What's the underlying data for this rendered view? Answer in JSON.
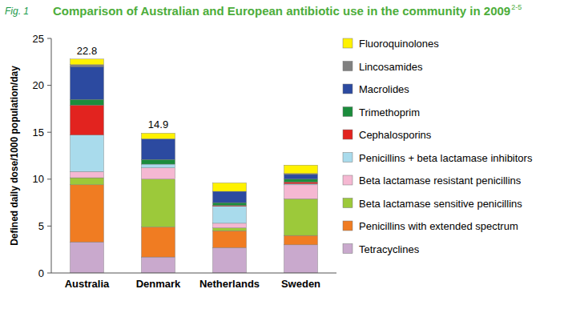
{
  "chart_data": {
    "type": "bar",
    "stacked": true,
    "figure_label": "Fig. 1",
    "title": "Comparison of Australian and European antibiotic use in the community in 2009",
    "title_note": "2-5",
    "y_label": "Defined daily dose/1000 population/day",
    "categories": [
      "Australia",
      "Denmark",
      "Netherlands",
      "Sweden"
    ],
    "ylim": [
      0,
      25
    ],
    "yticks": [
      0,
      5,
      10,
      15,
      20,
      25
    ],
    "grid": false,
    "legend": "right",
    "series": [
      {
        "name": "Tetracyclines",
        "color": "#c9a9cd",
        "values": [
          3.3,
          1.7,
          2.7,
          3.0
        ]
      },
      {
        "name": "Penicillins with extended spectrum",
        "color": "#f07c22",
        "values": [
          6.1,
          3.2,
          1.8,
          1.0
        ]
      },
      {
        "name": "Beta lactamase sensitive penicillins",
        "color": "#9cc93a",
        "values": [
          0.75,
          5.1,
          0.3,
          3.9
        ]
      },
      {
        "name": "Beta lactamase resistant penicillins",
        "color": "#f5b8d2",
        "values": [
          0.65,
          1.2,
          0.5,
          1.5
        ]
      },
      {
        "name": "Penicillins + beta lactamase inhibitors",
        "color": "#a9dbec",
        "values": [
          3.9,
          0.4,
          1.8,
          0.1
        ]
      },
      {
        "name": "Cephalosporins",
        "color": "#e2231f",
        "values": [
          3.2,
          0,
          0.1,
          0.2
        ]
      },
      {
        "name": "Trimethoprim",
        "color": "#1b8c3c",
        "values": [
          0.6,
          0.5,
          0.3,
          0.3
        ]
      },
      {
        "name": "Macrolides",
        "color": "#2c4aa0",
        "values": [
          3.5,
          2.2,
          1.2,
          0.5
        ]
      },
      {
        "name": "Lincosamides",
        "color": "#808080",
        "values": [
          0.2,
          0,
          0,
          0.1
        ]
      },
      {
        "name": "Fluoroquinolones",
        "color": "#fff200",
        "values": [
          0.6,
          0.6,
          0.9,
          0.9
        ]
      }
    ],
    "annotations": [
      {
        "category": "Australia",
        "value": 22.8
      },
      {
        "category": "Denmark",
        "value": 14.9
      }
    ]
  }
}
